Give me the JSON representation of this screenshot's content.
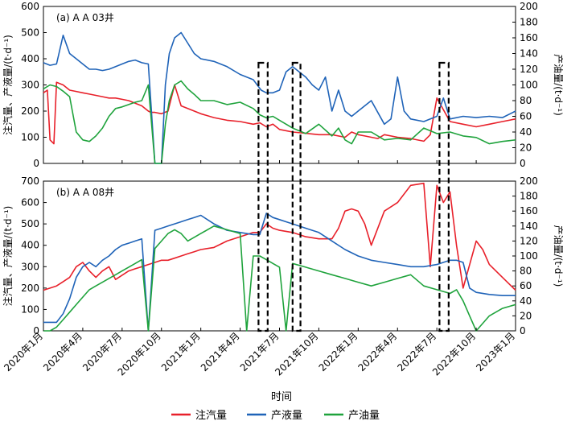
{
  "chart_data": [
    {
      "type": "line",
      "panel_label": "(a) A A 03井",
      "ylabel_left": "注汽量、产液量/(t·d⁻¹)",
      "ylabel_right": "产油量/(t·d⁻¹)",
      "ylim_left": [
        0,
        600
      ],
      "ylim_right": [
        0,
        200
      ],
      "yticks_left": [
        "0",
        "100",
        "200",
        "300",
        "400",
        "500",
        "600"
      ],
      "yticks_right": [
        "0",
        "20",
        "40",
        "60",
        "80",
        "100",
        "120",
        "140",
        "160",
        "180",
        "200"
      ],
      "x_range": [
        0,
        36
      ],
      "series": [
        {
          "name": "注汽量",
          "axis": "left",
          "color": "#e8202a",
          "x": [
            0,
            0.3,
            0.5,
            0.8,
            1,
            1.5,
            2,
            2.5,
            3,
            3.5,
            4,
            4.5,
            5,
            5.5,
            6,
            6.5,
            7,
            7.5,
            8,
            8.2,
            8.5,
            9,
            9.5,
            10,
            10.5,
            11,
            12,
            13,
            14,
            15,
            16,
            16.5,
            17,
            17.5,
            18,
            19,
            20,
            21,
            22,
            23,
            23.5,
            24,
            24.5,
            25,
            25.5,
            26,
            27,
            28,
            29,
            29.5,
            30,
            31,
            32,
            33,
            34,
            35,
            36
          ],
          "y": [
            270,
            280,
            90,
            75,
            310,
            300,
            280,
            275,
            270,
            265,
            260,
            255,
            250,
            250,
            245,
            240,
            230,
            220,
            200,
            195,
            195,
            190,
            200,
            300,
            220,
            210,
            190,
            175,
            165,
            160,
            150,
            155,
            140,
            150,
            130,
            120,
            115,
            110,
            110,
            100,
            120,
            110,
            105,
            100,
            95,
            110,
            100,
            95,
            85,
            110,
            250,
            160,
            150,
            140,
            150,
            160,
            170
          ]
        },
        {
          "name": "产液量",
          "axis": "left",
          "color": "#1f63b8",
          "x": [
            0,
            0.5,
            1,
            1.5,
            2,
            2.5,
            3,
            3.5,
            4,
            4.5,
            5,
            5.5,
            6,
            6.5,
            7,
            7.5,
            8,
            8.5,
            9,
            9.3,
            9.6,
            10,
            10.5,
            11,
            11.5,
            12,
            13,
            14,
            15,
            16,
            16.3,
            16.6,
            17,
            17.5,
            18,
            18.5,
            19,
            20,
            20.5,
            21,
            21.5,
            22,
            22.5,
            23,
            23.5,
            24,
            25,
            26,
            26.5,
            27,
            27.5,
            28,
            29,
            30,
            30.5,
            31,
            32,
            33,
            34,
            35,
            36
          ],
          "y": [
            385,
            375,
            380,
            490,
            420,
            400,
            380,
            360,
            360,
            355,
            360,
            370,
            380,
            390,
            395,
            385,
            380,
            0,
            0,
            300,
            420,
            480,
            500,
            460,
            420,
            400,
            390,
            370,
            340,
            320,
            300,
            280,
            270,
            270,
            280,
            350,
            370,
            330,
            300,
            280,
            330,
            200,
            280,
            200,
            180,
            200,
            240,
            150,
            170,
            330,
            200,
            170,
            160,
            180,
            250,
            170,
            180,
            175,
            180,
            175,
            200
          ]
        },
        {
          "name": "产油量",
          "axis": "right",
          "color": "#1fa33c",
          "x": [
            0,
            0.5,
            1,
            1.5,
            2,
            2.5,
            3,
            3.5,
            4,
            4.5,
            5,
            5.5,
            6,
            6.5,
            7,
            7.5,
            8,
            8.5,
            9,
            9.3,
            9.6,
            10,
            10.5,
            11,
            11.5,
            12,
            13,
            14,
            15,
            16,
            16.5,
            17,
            17.5,
            18,
            19,
            20,
            21,
            22,
            22.5,
            23,
            23.5,
            24,
            25,
            26,
            27,
            28,
            29,
            30,
            31,
            32,
            33,
            34,
            35,
            36
          ],
          "y": [
            95,
            100,
            98,
            92,
            85,
            40,
            30,
            28,
            35,
            45,
            60,
            70,
            72,
            75,
            78,
            80,
            100,
            0,
            0,
            50,
            80,
            100,
            105,
            95,
            88,
            80,
            80,
            75,
            78,
            70,
            62,
            58,
            60,
            55,
            45,
            38,
            50,
            35,
            45,
            30,
            25,
            40,
            40,
            30,
            32,
            30,
            45,
            38,
            40,
            35,
            33,
            25,
            28,
            30
          ]
        }
      ]
    },
    {
      "type": "line",
      "panel_label": "(b) A A 08井",
      "ylabel_left": "注汽量、产液量/(t·d⁻¹)",
      "ylabel_right": "产油量/(t·d⁻¹)",
      "ylim_left": [
        0,
        700
      ],
      "ylim_right": [
        0,
        200
      ],
      "yticks_left": [
        "0",
        "100",
        "200",
        "300",
        "400",
        "500",
        "600",
        "700"
      ],
      "yticks_right": [
        "0",
        "20",
        "40",
        "60",
        "80",
        "100",
        "120",
        "140",
        "160",
        "180",
        "200"
      ],
      "x_range": [
        0,
        36
      ],
      "xticks": [
        "2020年1月",
        "2020年4月",
        "2020年7月",
        "2020年10月",
        "2021年1月",
        "2021年4月",
        "2021年7月",
        "2021年10月",
        "2022年1月",
        "2022年4月",
        "2022年7月",
        "2022年10月",
        "2023年1月"
      ],
      "xlabel": "时间",
      "series": [
        {
          "name": "注汽量",
          "axis": "left",
          "color": "#e8202a",
          "x": [
            0,
            0.5,
            1,
            1.5,
            2,
            2.5,
            3,
            3.5,
            4,
            4.5,
            5,
            5.5,
            6,
            6.5,
            7,
            7.5,
            8,
            8.5,
            9,
            9.5,
            10,
            10.5,
            11,
            11.5,
            12,
            13,
            14,
            15,
            16,
            16.5,
            17,
            17.5,
            18,
            19,
            20,
            21,
            22,
            22.5,
            23,
            23.5,
            24,
            24.5,
            25,
            26,
            27,
            28,
            29,
            29.5,
            30,
            30.5,
            31,
            31.5,
            32,
            33,
            33.5,
            34,
            35,
            36
          ],
          "y": [
            190,
            200,
            210,
            230,
            250,
            300,
            320,
            280,
            250,
            280,
            300,
            240,
            260,
            280,
            290,
            300,
            310,
            320,
            330,
            330,
            340,
            350,
            360,
            370,
            380,
            390,
            420,
            440,
            460,
            460,
            500,
            480,
            470,
            460,
            440,
            430,
            430,
            480,
            560,
            570,
            560,
            500,
            400,
            560,
            600,
            680,
            690,
            300,
            680,
            600,
            650,
            400,
            200,
            420,
            380,
            310,
            250,
            190
          ]
        },
        {
          "name": "产液量",
          "axis": "left",
          "color": "#1f63b8",
          "x": [
            0,
            0.5,
            1,
            1.5,
            2,
            2.5,
            3,
            3.5,
            4,
            4.5,
            5,
            5.5,
            6,
            6.5,
            7,
            7.5,
            8,
            8.5,
            9,
            9.5,
            10,
            10.5,
            11,
            11.5,
            12,
            13,
            14,
            15,
            16,
            16.5,
            17,
            17.5,
            18,
            18.5,
            19,
            20,
            21,
            22,
            23,
            24,
            25,
            26,
            27,
            28,
            29,
            30,
            31,
            31.5,
            32,
            32.5,
            33,
            34,
            35,
            36
          ],
          "y": [
            40,
            40,
            40,
            80,
            150,
            250,
            300,
            320,
            300,
            330,
            350,
            380,
            400,
            410,
            420,
            430,
            0,
            470,
            480,
            490,
            500,
            510,
            520,
            530,
            540,
            500,
            470,
            460,
            450,
            450,
            550,
            530,
            520,
            510,
            500,
            480,
            460,
            420,
            380,
            350,
            330,
            320,
            310,
            300,
            300,
            310,
            330,
            330,
            320,
            200,
            180,
            170,
            165,
            165
          ]
        },
        {
          "name": "产油量",
          "axis": "right",
          "color": "#1fa33c",
          "x": [
            0,
            0.5,
            1,
            1.5,
            2,
            2.5,
            3,
            3.5,
            4,
            4.5,
            5,
            5.5,
            6,
            6.5,
            7,
            7.5,
            8,
            8.5,
            9,
            9.5,
            10,
            10.5,
            11,
            11.5,
            12,
            13,
            14,
            15,
            15.5,
            16,
            16.5,
            17,
            17.5,
            18,
            18.5,
            19,
            20,
            21,
            22,
            23,
            24,
            25,
            26,
            27,
            28,
            29,
            30,
            31,
            31.5,
            32,
            32.5,
            33,
            34,
            35,
            36
          ],
          "y": [
            0,
            0,
            5,
            15,
            25,
            35,
            45,
            55,
            60,
            65,
            70,
            75,
            80,
            85,
            90,
            95,
            0,
            110,
            120,
            130,
            135,
            130,
            120,
            125,
            130,
            140,
            135,
            130,
            0,
            100,
            100,
            95,
            90,
            85,
            0,
            90,
            85,
            80,
            75,
            70,
            65,
            60,
            65,
            70,
            75,
            60,
            55,
            50,
            55,
            40,
            20,
            0,
            20,
            30,
            35
          ]
        }
      ]
    }
  ],
  "highlight_boxes": [
    {
      "x_range": [
        16.4,
        17.1
      ],
      "panel": "both"
    },
    {
      "x_range": [
        19.0,
        19.6
      ],
      "panel": "both"
    },
    {
      "x_range": [
        30.2,
        30.9
      ],
      "panel": "both"
    }
  ],
  "legend": {
    "items": [
      {
        "label": "注汽量",
        "color": "#e8202a"
      },
      {
        "label": "产液量",
        "color": "#1f63b8"
      },
      {
        "label": "产油量",
        "color": "#1fa33c"
      }
    ]
  }
}
